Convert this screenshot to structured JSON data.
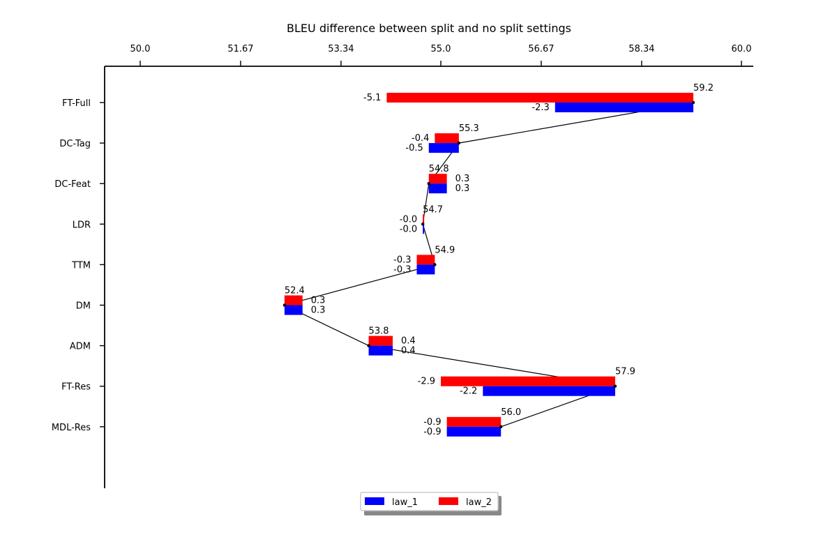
{
  "chart_data": {
    "type": "bar",
    "orientation": "horizontal",
    "title": "BLEU difference between split and no split settings",
    "xticks": [
      "50.0",
      "51.67",
      "53.34",
      "55.0",
      "56.67",
      "58.34",
      "60.0"
    ],
    "xlim": [
      50.0,
      60.0
    ],
    "xaxis_position": "top",
    "categories": [
      "FT-Full",
      "DC-Tag",
      "DC-Feat",
      "LDR",
      "TTM",
      "DM",
      "ADM",
      "FT-Res",
      "MDL-Res"
    ],
    "scores": [
      59.2,
      55.3,
      54.8,
      54.7,
      54.9,
      52.4,
      53.8,
      57.9,
      56.0
    ],
    "series": [
      {
        "name": "law_1",
        "color": "#0000ff",
        "values": [
          -2.3,
          -0.5,
          0.3,
          -0.0,
          -0.3,
          0.3,
          0.4,
          -2.2,
          -0.9
        ]
      },
      {
        "name": "law_2",
        "color": "#ff0000",
        "values": [
          -5.1,
          -0.4,
          0.3,
          -0.0,
          -0.3,
          0.3,
          0.4,
          -2.9,
          -0.9
        ]
      }
    ],
    "legend": {
      "placement": "bottom-center",
      "entries": [
        "law_1",
        "law_2"
      ]
    },
    "grid": false
  }
}
